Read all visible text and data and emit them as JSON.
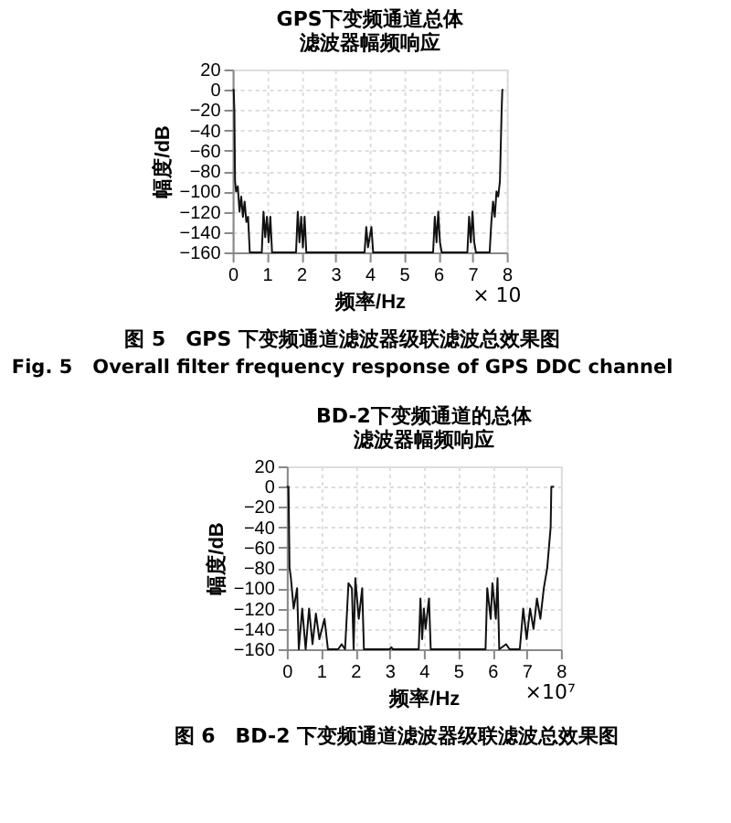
{
  "chart_data": [
    {
      "type": "line",
      "title": "GPS下变频通道总体滤波器幅频响应",
      "xlabel": "频率/Hz",
      "ylabel": "幅度/dB",
      "xlim": [
        0,
        8
      ],
      "xticks": [
        0,
        1,
        2,
        3,
        4,
        5,
        6,
        7,
        8
      ],
      "ylim": [
        -160,
        20
      ],
      "yticks": [
        -160,
        -140,
        -120,
        -100,
        -80,
        -60,
        -40,
        -20,
        0,
        20
      ],
      "grid": true,
      "line_style": "solid",
      "marker": "none",
      "annotations": [
        "× 10",
        "图 5　GPS 下变频通道滤波器级联滤波总效果图",
        "Fig. 5　Overall filter frequency response of GPS DDC channel"
      ],
      "series": [
        {
          "color": "#111111",
          "x": [
            0,
            0.03,
            0.05,
            0.07,
            0.1,
            0.15,
            0.2,
            0.25,
            0.3,
            0.35,
            0.4,
            0.45,
            0.5,
            0.85,
            0.9,
            0.95,
            1.0,
            1.05,
            1.1,
            1.15,
            1.85,
            1.9,
            1.95,
            2.0,
            2.05,
            2.1,
            2.15,
            3.85,
            3.9,
            3.95,
            4.05,
            4.1,
            5.85,
            5.9,
            5.95,
            6.0,
            6.05,
            6.1,
            6.85,
            6.9,
            6.95,
            7.0,
            7.05,
            7.1,
            7.5,
            7.55,
            7.6,
            7.65,
            7.7,
            7.75,
            7.8,
            7.85,
            7.87,
            7.9
          ],
          "values": [
            0,
            0,
            -20,
            -90,
            -100,
            -95,
            -120,
            -105,
            -125,
            -110,
            -130,
            -125,
            -160,
            -160,
            -120,
            -145,
            -125,
            -150,
            -125,
            -160,
            -160,
            -120,
            -150,
            -125,
            -155,
            -125,
            -160,
            -160,
            -135,
            -155,
            -135,
            -160,
            -160,
            -125,
            -150,
            -120,
            -150,
            -160,
            -160,
            -125,
            -150,
            -120,
            -150,
            -160,
            -160,
            -130,
            -110,
            -125,
            -100,
            -105,
            -90,
            -20,
            0,
            0
          ]
        }
      ]
    },
    {
      "type": "line",
      "title": "BD-2下变频通道的总体滤波器幅频响应",
      "xlabel": "频率/Hz",
      "ylabel": "幅度/dB",
      "xlim": [
        0,
        8
      ],
      "xticks": [
        0,
        1,
        2,
        3,
        4,
        5,
        6,
        7,
        8
      ],
      "ylim": [
        -160,
        20
      ],
      "yticks": [
        -160,
        -140,
        -120,
        -100,
        -80,
        -60,
        -40,
        -20,
        0,
        20
      ],
      "grid": true,
      "line_style": "solid",
      "marker": "none",
      "annotations": [
        "×10⁷",
        "图 6　BD-2 下变频通道滤波器级联滤波总效果图"
      ],
      "series": [
        {
          "color": "#111111",
          "x": [
            0,
            0.05,
            0.08,
            0.12,
            0.2,
            0.3,
            0.35,
            0.45,
            0.55,
            0.65,
            0.75,
            0.85,
            0.95,
            1.1,
            1.2,
            1.5,
            1.6,
            1.7,
            1.8,
            1.9,
            1.95,
            2.0,
            2.1,
            2.2,
            2.25,
            3.0,
            3.05,
            3.1,
            3.85,
            3.9,
            3.95,
            4.0,
            4.05,
            4.15,
            4.2,
            5.0,
            5.8,
            5.85,
            5.95,
            6.0,
            6.1,
            6.15,
            6.2,
            6.4,
            6.5,
            6.8,
            6.9,
            7.0,
            7.1,
            7.2,
            7.3,
            7.4,
            7.5,
            7.6,
            7.7,
            7.72,
            7.8
          ],
          "values": [
            0,
            0,
            -80,
            -90,
            -120,
            -100,
            -160,
            -120,
            -160,
            -120,
            -155,
            -125,
            -150,
            -130,
            -160,
            -160,
            -155,
            -160,
            -95,
            -100,
            -160,
            -90,
            -130,
            -100,
            -160,
            -160,
            -158,
            -160,
            -160,
            -110,
            -150,
            -120,
            -140,
            -110,
            -160,
            -160,
            -160,
            -100,
            -130,
            -95,
            -130,
            -90,
            -160,
            -155,
            -160,
            -160,
            -120,
            -150,
            -120,
            -140,
            -110,
            -130,
            -100,
            -80,
            -40,
            0,
            0
          ]
        }
      ]
    }
  ]
}
